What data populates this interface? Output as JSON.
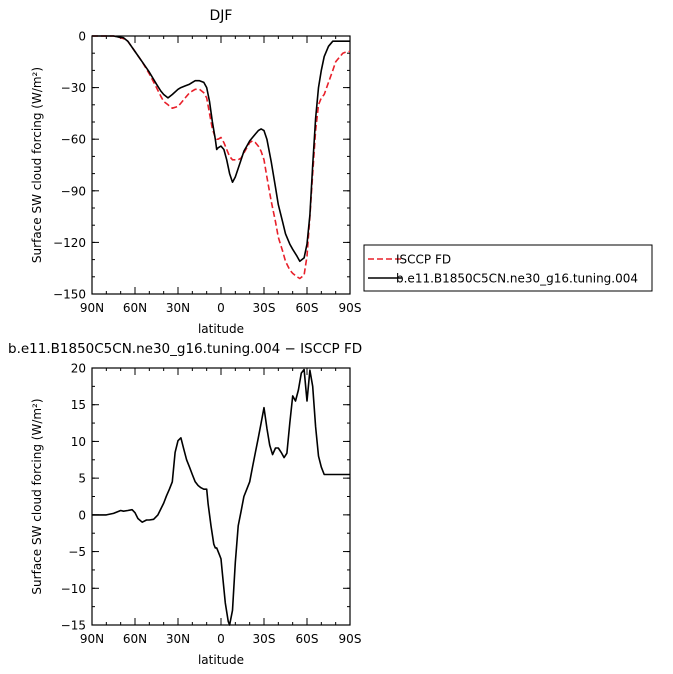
{
  "chart_data": [
    {
      "type": "line",
      "title": "DJF",
      "xlabel": "latitude",
      "ylabel": "Surface SW cloud forcing (W/m²)",
      "xlim": [
        90,
        -90
      ],
      "ylim": [
        -150,
        0
      ],
      "xticks": [
        90,
        60,
        30,
        0,
        -30,
        -60,
        -90
      ],
      "xtick_labels": [
        "90N",
        "60N",
        "30N",
        "0",
        "30S",
        "60S",
        "90S"
      ],
      "yticks": [
        0,
        -30,
        -60,
        -90,
        -120,
        -150
      ],
      "ytick_labels": [
        "0",
        "−30",
        "−60",
        "−90",
        "−120",
        "−150"
      ],
      "legend_position": "right",
      "series": [
        {
          "name": "ISCCP FD",
          "color": "#e8202a",
          "dash": "dashed",
          "x": [
            90,
            85,
            80,
            75,
            72,
            68,
            65,
            60,
            55,
            50,
            45,
            42,
            40,
            37,
            34,
            30,
            28,
            25,
            22,
            20,
            18,
            15,
            12,
            10,
            8,
            6,
            4,
            3,
            2,
            0,
            -2,
            -4,
            -6,
            -8,
            -10,
            -12,
            -14,
            -16,
            -18,
            -20,
            -22,
            -24,
            -26,
            -28,
            -30,
            -32,
            -35,
            -38,
            -40,
            -43,
            -45,
            -48,
            -50,
            -53,
            -55,
            -58,
            -60,
            -62,
            -64,
            -66,
            -68,
            -70,
            -72,
            -75,
            -78,
            -80,
            -83,
            -85,
            -88,
            -90
          ],
          "y": [
            0,
            0,
            0,
            0,
            -0.5,
            -1.5,
            -3,
            -9,
            -15,
            -22,
            -30,
            -35,
            -38,
            -40,
            -42,
            -41,
            -39,
            -36,
            -33,
            -32,
            -31,
            -31,
            -33,
            -36,
            -45,
            -54,
            -59,
            -60,
            -60,
            -59,
            -62,
            -66,
            -70,
            -72,
            -72,
            -72,
            -71,
            -68,
            -65,
            -62,
            -61,
            -62,
            -64,
            -67,
            -72,
            -82,
            -96,
            -108,
            -117,
            -125,
            -131,
            -136,
            -138,
            -140,
            -141,
            -139,
            -128,
            -105,
            -80,
            -55,
            -40,
            -36,
            -34,
            -27,
            -20,
            -15,
            -12,
            -10,
            -9,
            -9
          ]
        },
        {
          "name": "b.e11.B1850C5CN.ne30_g16.tuning.004",
          "color": "#000000",
          "dash": "solid",
          "x": [
            90,
            85,
            80,
            75,
            72,
            68,
            65,
            60,
            55,
            50,
            45,
            42,
            40,
            37,
            34,
            30,
            28,
            25,
            22,
            20,
            18,
            15,
            12,
            10,
            8,
            6,
            4,
            3,
            2,
            0,
            -2,
            -4,
            -6,
            -8,
            -10,
            -12,
            -14,
            -16,
            -18,
            -20,
            -22,
            -24,
            -26,
            -28,
            -30,
            -32,
            -35,
            -38,
            -40,
            -43,
            -45,
            -48,
            -50,
            -53,
            -55,
            -58,
            -60,
            -62,
            -64,
            -66,
            -68,
            -70,
            -72,
            -75,
            -78,
            -80,
            -83,
            -85,
            -88,
            -90
          ],
          "y": [
            0,
            0,
            0,
            0,
            -0.5,
            -1,
            -3,
            -9,
            -15,
            -21,
            -28,
            -32,
            -34,
            -36,
            -34,
            -31,
            -30,
            -29,
            -28,
            -27,
            -26,
            -26,
            -27,
            -30,
            -38,
            -50,
            -60,
            -66,
            -65,
            -64,
            -66,
            -72,
            -80,
            -85,
            -82,
            -77,
            -72,
            -67,
            -64,
            -61,
            -59,
            -57,
            -55,
            -54,
            -55,
            -60,
            -73,
            -88,
            -98,
            -108,
            -115,
            -121,
            -124,
            -128,
            -131,
            -129,
            -121,
            -104,
            -75,
            -48,
            -30,
            -20,
            -12,
            -6,
            -3,
            -3,
            -3,
            -3,
            -3,
            -3
          ]
        }
      ]
    },
    {
      "type": "line",
      "title": "b.e11.B1850C5CN.ne30_g16.tuning.004 − ISCCP FD",
      "xlabel": "latitude",
      "ylabel": "Surface SW cloud forcing (W/m²)",
      "xlim": [
        90,
        -90
      ],
      "ylim": [
        -15,
        20
      ],
      "xticks": [
        90,
        60,
        30,
        0,
        -30,
        -60,
        -90
      ],
      "xtick_labels": [
        "90N",
        "60N",
        "30N",
        "0",
        "30S",
        "60S",
        "90S"
      ],
      "yticks": [
        20,
        15,
        10,
        5,
        0,
        -5,
        -10,
        -15
      ],
      "ytick_labels": [
        "20",
        "15",
        "10",
        "5",
        "0",
        "−5",
        "−10",
        "−15"
      ],
      "series": [
        {
          "name": "",
          "color": "#000000",
          "dash": "solid",
          "x": [
            90,
            85,
            80,
            75,
            70,
            68,
            65,
            62,
            60,
            58,
            55,
            52,
            50,
            47,
            44,
            42,
            40,
            38,
            36,
            34,
            32,
            30,
            28,
            26,
            24,
            22,
            20,
            18,
            16,
            14,
            12,
            10,
            9,
            7,
            5,
            4,
            3,
            1,
            0,
            -1,
            -3,
            -5,
            -6,
            -8,
            -10,
            -12,
            -14,
            -16,
            -18,
            -20,
            -22,
            -24,
            -26,
            -28,
            -30,
            -32,
            -34,
            -36,
            -38,
            -40,
            -42,
            -44,
            -46,
            -48,
            -50,
            -52,
            -54,
            -56,
            -58,
            -60,
            -62,
            -64,
            -66,
            -68,
            -70,
            -72,
            -74,
            -76,
            -78,
            -80,
            -82,
            -84,
            -86,
            -88,
            -90
          ],
          "y": [
            0,
            0,
            0,
            0.2,
            0.6,
            0.5,
            0.6,
            0.7,
            0.3,
            -0.5,
            -1,
            -0.7,
            -0.7,
            -0.6,
            0,
            0.8,
            1.6,
            2.6,
            3.5,
            4.5,
            8.5,
            10.1,
            10.5,
            9.0,
            7.5,
            6.5,
            5.5,
            4.5,
            4.0,
            3.7,
            3.5,
            3.5,
            1.5,
            -1.5,
            -4.0,
            -4.5,
            -4.5,
            -5.5,
            -6.0,
            -8.0,
            -12.0,
            -14.5,
            -15.0,
            -13.0,
            -6.5,
            -1.5,
            0.5,
            2.5,
            3.5,
            4.5,
            6.5,
            8.5,
            10.5,
            12.5,
            14.6,
            11.8,
            9.5,
            8.2,
            9.1,
            9.1,
            8.5,
            7.8,
            8.4,
            12.5,
            16.2,
            15.5,
            17.0,
            19.3,
            19.8,
            15.5,
            19.7,
            17.5,
            12.0,
            8.0,
            6.5,
            5.5,
            5.5,
            5.5,
            5.5,
            5.5,
            5.5,
            5.5,
            5.5,
            5.5,
            5.5
          ]
        }
      ]
    }
  ]
}
